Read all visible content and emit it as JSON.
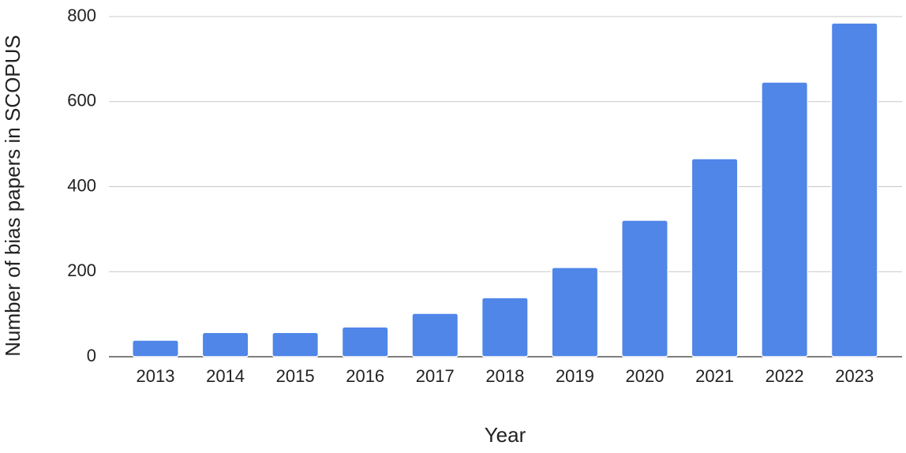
{
  "chart_data": {
    "type": "bar",
    "x_label": "Year",
    "y_label": "Number of bias papers in SCOPUS",
    "categories": [
      "2013",
      "2014",
      "2015",
      "2016",
      "2017",
      "2018",
      "2019",
      "2020",
      "2021",
      "2022",
      "2023"
    ],
    "values": [
      39,
      57,
      57,
      70,
      102,
      139,
      210,
      321,
      466,
      646,
      785
    ],
    "color": "#4f86e8",
    "ylim": [
      0,
      800
    ],
    "yticks": [
      0,
      200,
      400,
      600,
      800
    ],
    "grid": true
  }
}
